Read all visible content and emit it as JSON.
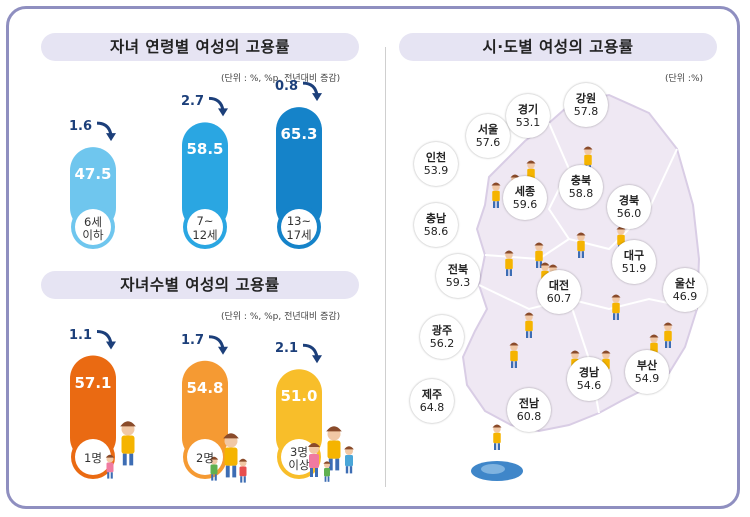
{
  "colors": {
    "border": "#8f8fc0",
    "pill": "#e6e4f3",
    "delta": "#1c3f7a",
    "map_bg": "#efe8f3"
  },
  "panel_age": {
    "title": "자녀 연령별 여성의 고용률",
    "unit": "(단위 : %, %p, 전년대비 증감)"
  },
  "panel_children": {
    "title": "자녀수별 여성의 고용률",
    "unit": "(단위 : %, %p, 전년대비 증감)"
  },
  "panel_region": {
    "title": "시·도별 여성의 고용률",
    "unit": "(단위 :%)"
  },
  "chart_data": [
    {
      "type": "bar",
      "title": "자녀 연령별 여성의 고용률",
      "categories": [
        "6세\n이하",
        "7~\n12세",
        "13~\n17세"
      ],
      "values": [
        47.5,
        58.5,
        65.3
      ],
      "changes": [
        1.6,
        2.7,
        0.8
      ],
      "labels": [
        "47.5",
        "58.5",
        "65.3"
      ],
      "change_labels": [
        "1.6",
        "2.7",
        "0.8"
      ],
      "cat_lines": [
        [
          "6세",
          "이하"
        ],
        [
          "7~",
          "12세"
        ],
        [
          "13~",
          "17세"
        ]
      ]
    },
    {
      "type": "bar",
      "title": "자녀수별 여성의 고용률",
      "categories": [
        "1명",
        "2명",
        "3명\n이상"
      ],
      "values": [
        57.1,
        54.8,
        51.0
      ],
      "changes": [
        1.1,
        1.7,
        2.1
      ],
      "labels": [
        "57.1",
        "54.8",
        "51.0"
      ],
      "change_labels": [
        "1.1",
        "1.7",
        "2.1"
      ],
      "cat_lines": [
        [
          "1명"
        ],
        [
          "2명"
        ],
        [
          "3명",
          "이상"
        ]
      ]
    },
    {
      "type": "table",
      "title": "시·도별 여성의 고용률",
      "regions": [
        {
          "name": "서울",
          "value": "57.6"
        },
        {
          "name": "경기",
          "value": "53.1"
        },
        {
          "name": "강원",
          "value": "57.8"
        },
        {
          "name": "인천",
          "value": "53.9"
        },
        {
          "name": "세종",
          "value": "59.6"
        },
        {
          "name": "충북",
          "value": "58.8"
        },
        {
          "name": "경북",
          "value": "56.0"
        },
        {
          "name": "충남",
          "value": "58.6"
        },
        {
          "name": "대구",
          "value": "51.9"
        },
        {
          "name": "전북",
          "value": "59.3"
        },
        {
          "name": "대전",
          "value": "60.7"
        },
        {
          "name": "울산",
          "value": "46.9"
        },
        {
          "name": "광주",
          "value": "56.2"
        },
        {
          "name": "부산",
          "value": "54.9"
        },
        {
          "name": "제주",
          "value": "64.8"
        },
        {
          "name": "전남",
          "value": "60.8"
        },
        {
          "name": "경남",
          "value": "54.6"
        }
      ]
    }
  ]
}
